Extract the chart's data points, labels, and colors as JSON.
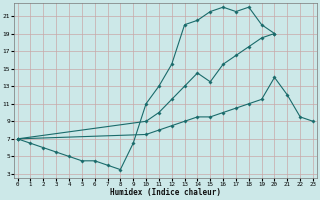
{
  "xlabel": "Humidex (Indice chaleur)",
  "bg_color": "#cce8e8",
  "grid_color": "#c8a8a8",
  "line_color": "#1a6b6b",
  "xlim_min": -0.3,
  "xlim_max": 23.3,
  "ylim_min": 2.5,
  "ylim_max": 22.5,
  "xticks": [
    0,
    1,
    2,
    3,
    4,
    5,
    6,
    7,
    8,
    9,
    10,
    11,
    12,
    13,
    14,
    15,
    16,
    17,
    18,
    19,
    20,
    21,
    22,
    23
  ],
  "yticks": [
    3,
    5,
    7,
    9,
    11,
    13,
    15,
    17,
    19,
    21
  ],
  "line1_x": [
    0,
    1,
    2,
    3,
    4,
    5,
    6,
    7,
    8,
    9,
    10,
    11,
    12,
    13,
    14,
    15,
    16,
    17,
    18,
    19,
    20
  ],
  "line1_y": [
    7.0,
    6.5,
    6.0,
    5.5,
    5.0,
    4.5,
    4.5,
    4.0,
    3.5,
    6.5,
    11.0,
    13.0,
    15.5,
    20.0,
    20.5,
    21.5,
    22.0,
    21.5,
    22.0,
    20.0,
    19.0
  ],
  "line2_x": [
    0,
    10,
    11,
    12,
    13,
    14,
    15,
    16,
    17,
    18,
    19,
    20
  ],
  "line2_y": [
    7.0,
    9.0,
    10.0,
    11.5,
    13.0,
    14.5,
    13.5,
    15.5,
    16.5,
    17.5,
    18.5,
    19.0
  ],
  "line3_x": [
    0,
    10,
    11,
    12,
    13,
    14,
    15,
    16,
    17,
    18,
    19,
    20,
    21,
    22,
    23
  ],
  "line3_y": [
    7.0,
    7.5,
    8.0,
    8.5,
    9.0,
    9.5,
    9.5,
    10.0,
    10.5,
    11.0,
    11.5,
    14.0,
    12.0,
    9.5,
    9.0
  ]
}
